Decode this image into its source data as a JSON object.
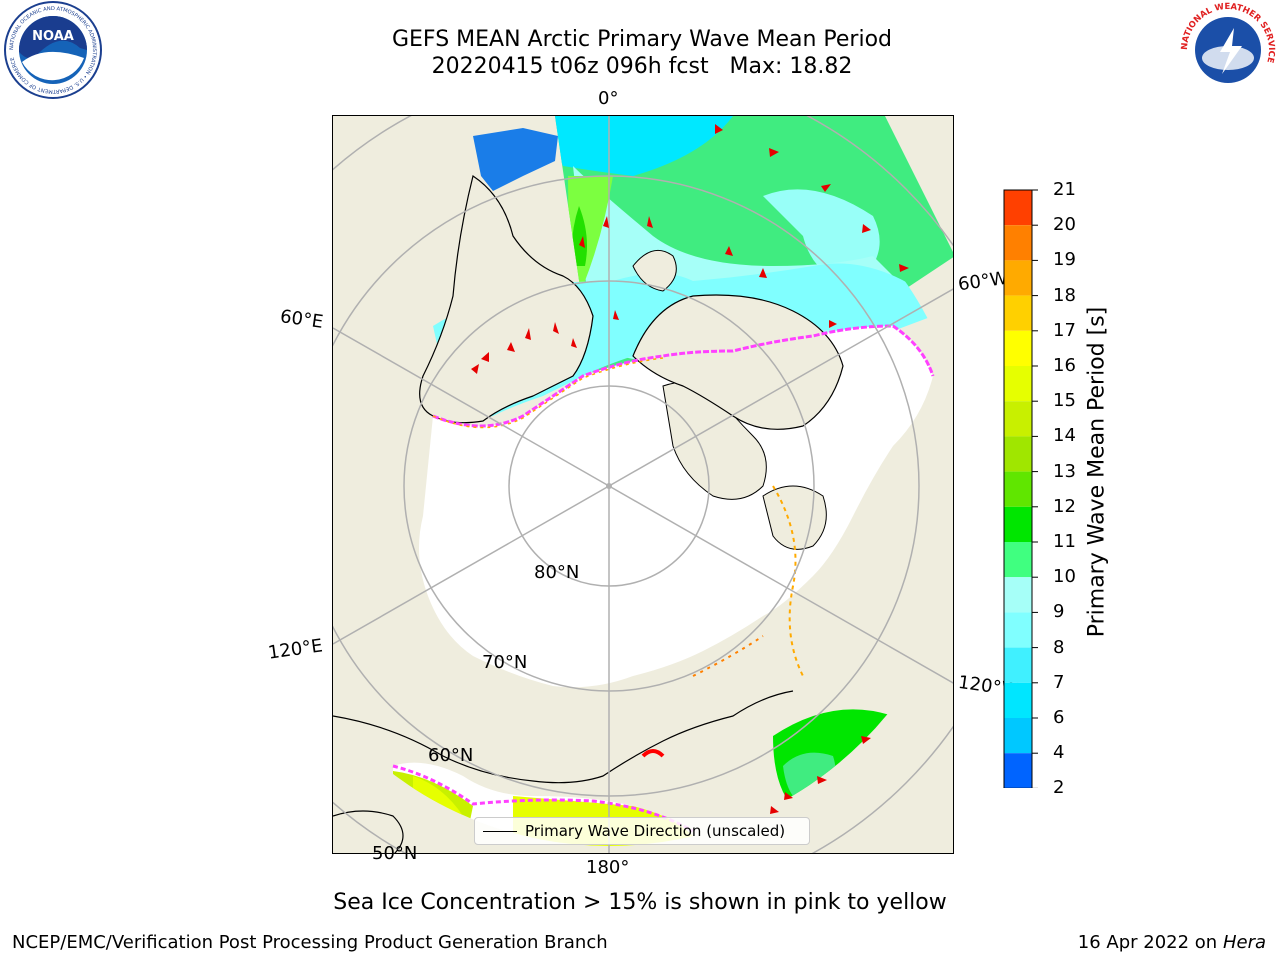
{
  "header": {
    "title_line1": "GEFS MEAN Arctic Primary Wave Mean Period",
    "title_line2": "20220415 t06z 096h fcst   Max: 18.82"
  },
  "logos": {
    "noaa": "NOAA",
    "noaa_ring": "NATIONAL OCEANIC AND ATMOSPHERIC ADMINISTRATION • U.S. DEPARTMENT OF COMMERCE",
    "nws_ring": "NATIONAL WEATHER SERVICE"
  },
  "map": {
    "projection": "north polar stereographic",
    "longitude_labels": [
      "0°",
      "60°E",
      "120°E",
      "180°",
      "60°W",
      "120°W"
    ],
    "latitude_labels": [
      "80°N",
      "70°N",
      "60°N",
      "50°N"
    ],
    "colors": {
      "land": "#efedde",
      "ice": "#ffffff",
      "grid": "#b0b0b0",
      "arrow": "#e60000"
    }
  },
  "legend": {
    "label": "Primary Wave Direction (unscaled)"
  },
  "colorbar": {
    "label": "Primary Wave Mean Period [s]",
    "ticks": [
      "2",
      "4",
      "6",
      "7",
      "8",
      "9",
      "10",
      "11",
      "12",
      "13",
      "14",
      "15",
      "16",
      "17",
      "18",
      "19",
      "20",
      "21"
    ],
    "colors": [
      "#0064ff",
      "#00c8ff",
      "#00e6ff",
      "#40f0ff",
      "#80ffff",
      "#a6fff8",
      "#40ff80",
      "#00e600",
      "#60e600",
      "#a0e600",
      "#c8f000",
      "#e6ff00",
      "#ffff00",
      "#ffd000",
      "#ffaa00",
      "#ff8000",
      "#ff4000",
      "#ff0000"
    ],
    "under_color": "#0000ff"
  },
  "caption": "Sea Ice Concentration > 15% is shown in pink to yellow",
  "footer": {
    "left": "NCEP/EMC/Verification Post Processing Product Generation Branch",
    "right_prefix": "16 Apr 2022 on ",
    "right_machine": "Hera"
  }
}
